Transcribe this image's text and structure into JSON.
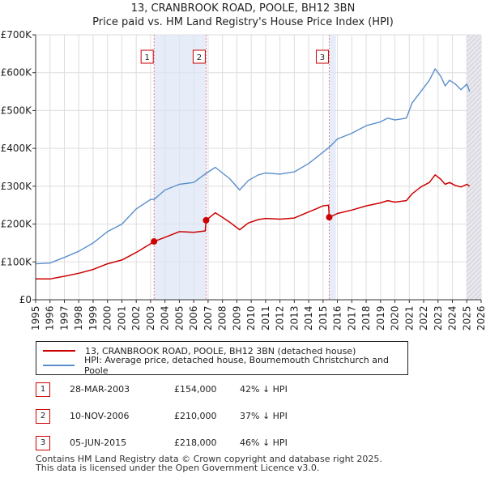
{
  "title_line1": "13, CRANBROOK ROAD, POOLE, BH12 3BN",
  "title_line2": "Price paid vs. HM Land Registry's House Price Index (HPI)",
  "legend": {
    "property_label": "13, CRANBROOK ROAD, POOLE, BH12 3BN (detached house)",
    "hpi_label": "HPI: Average price, detached house, Bournemouth Christchurch and Poole",
    "property_color": "#cc0000",
    "hpi_color": "#5b8fcc"
  },
  "sales": [
    {
      "num": "1",
      "date": "28-MAR-2003",
      "price": "£154,000",
      "pct": "42% ↓ HPI"
    },
    {
      "num": "2",
      "date": "10-NOV-2006",
      "price": "£210,000",
      "pct": "37% ↓ HPI"
    },
    {
      "num": "3",
      "date": "05-JUN-2015",
      "price": "£218,000",
      "pct": "46% ↓ HPI"
    }
  ],
  "footer": {
    "line1": "Contains HM Land Registry data © Crown copyright and database right 2025.",
    "line2": "This data is licensed under the Open Government Licence v3.0."
  },
  "chart_data": {
    "type": "line",
    "title": "13, CRANBROOK ROAD, POOLE, BH12 3BN",
    "subtitle": "Price paid vs. HM Land Registry's House Price Index (HPI)",
    "xlim": [
      1995,
      2026
    ],
    "ylim": [
      0,
      700000
    ],
    "y_ticks": [
      0,
      100000,
      200000,
      300000,
      400000,
      500000,
      600000,
      700000
    ],
    "y_tick_labels": [
      "£0",
      "£100K",
      "£200K",
      "£300K",
      "£400K",
      "£500K",
      "£600K",
      "£700K"
    ],
    "x_ticks": [
      1995,
      1996,
      1997,
      1998,
      1999,
      2000,
      2001,
      2002,
      2003,
      2004,
      2005,
      2006,
      2007,
      2008,
      2009,
      2010,
      2011,
      2012,
      2013,
      2014,
      2015,
      2016,
      2017,
      2018,
      2019,
      2020,
      2021,
      2022,
      2023,
      2024,
      2025,
      2026
    ],
    "grid": true,
    "sale_markers": [
      {
        "label": "1",
        "x": 2003.24,
        "y": 154000
      },
      {
        "label": "2",
        "x": 2006.86,
        "y": 210000
      },
      {
        "label": "3",
        "x": 2015.43,
        "y": 218000
      }
    ],
    "shaded_regions": [
      [
        2003.24,
        2006.86
      ],
      [
        2015.43,
        2015.9
      ],
      [
        2025.0,
        2026.0
      ]
    ],
    "series": [
      {
        "name": "HPI: Average price, detached house, Bournemouth Christchurch and Poole",
        "color": "#5b8fcc",
        "x": [
          1995.0,
          1996.0,
          1997.0,
          1998.0,
          1999.0,
          2000.0,
          2001.0,
          2002.0,
          2003.0,
          2003.24,
          2004.0,
          2005.0,
          2006.0,
          2006.86,
          2007.5,
          2008.0,
          2008.5,
          2009.2,
          2009.8,
          2010.5,
          2011.0,
          2012.0,
          2013.0,
          2014.0,
          2014.5,
          2015.0,
          2015.43,
          2016.0,
          2017.0,
          2018.0,
          2019.0,
          2019.5,
          2020.0,
          2020.8,
          2021.2,
          2021.8,
          2022.4,
          2022.8,
          2023.2,
          2023.5,
          2023.8,
          2024.2,
          2024.6,
          2025.0,
          2025.2
        ],
        "y": [
          95000,
          97000,
          112000,
          128000,
          150000,
          180000,
          200000,
          240000,
          265000,
          265000,
          290000,
          305000,
          310000,
          334000,
          350000,
          335000,
          320000,
          290000,
          315000,
          330000,
          335000,
          332000,
          338000,
          360000,
          375000,
          390000,
          403000,
          425000,
          440000,
          460000,
          470000,
          480000,
          475000,
          480000,
          520000,
          550000,
          580000,
          610000,
          590000,
          565000,
          580000,
          570000,
          555000,
          570000,
          550000
        ]
      },
      {
        "name": "13, CRANBROOK ROAD, POOLE, BH12 3BN (detached house)",
        "color": "#cc0000",
        "x": [
          1995.0,
          1996.0,
          1997.0,
          1998.0,
          1999.0,
          2000.0,
          2001.0,
          2002.0,
          2003.0,
          2003.24,
          2004.0,
          2005.0,
          2006.0,
          2006.8,
          2006.86,
          2007.5,
          2008.0,
          2008.5,
          2009.2,
          2009.8,
          2010.5,
          2011.0,
          2012.0,
          2013.0,
          2014.0,
          2014.5,
          2015.0,
          2015.38,
          2015.43,
          2016.0,
          2017.0,
          2018.0,
          2019.0,
          2019.5,
          2020.0,
          2020.8,
          2021.2,
          2021.8,
          2022.4,
          2022.8,
          2023.2,
          2023.5,
          2023.8,
          2024.2,
          2024.6,
          2025.0,
          2025.2
        ],
        "y": [
          55000,
          55000,
          62000,
          70000,
          80000,
          95000,
          105000,
          125000,
          148000,
          154000,
          165000,
          180000,
          178000,
          182000,
          210000,
          230000,
          218000,
          205000,
          185000,
          203000,
          212000,
          215000,
          213000,
          216000,
          232000,
          240000,
          248000,
          250000,
          218000,
          228000,
          237000,
          248000,
          256000,
          262000,
          258000,
          262000,
          280000,
          298000,
          310000,
          330000,
          318000,
          305000,
          310000,
          302000,
          298000,
          305000,
          300000
        ]
      }
    ]
  }
}
